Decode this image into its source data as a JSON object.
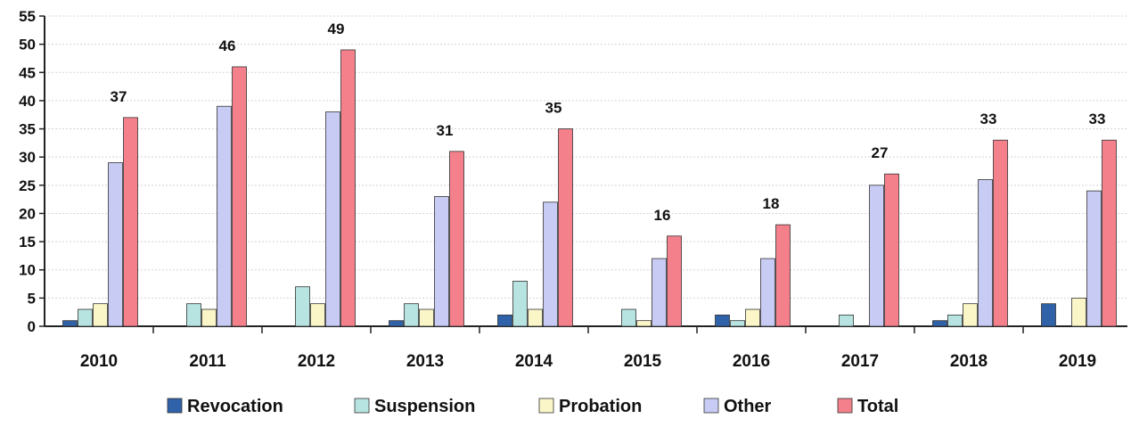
{
  "chart_data": {
    "type": "bar",
    "categories": [
      "2010",
      "2011",
      "2012",
      "2013",
      "2014",
      "2015",
      "2016",
      "2017",
      "2018",
      "2019"
    ],
    "series": [
      {
        "name": "Revocation",
        "color": "#2f62a8",
        "values": [
          1,
          0,
          0,
          1,
          2,
          0,
          2,
          0,
          1,
          4
        ]
      },
      {
        "name": "Suspension",
        "color": "#b7e3e1",
        "values": [
          3,
          4,
          7,
          4,
          8,
          3,
          1,
          2,
          2,
          0
        ]
      },
      {
        "name": "Probation",
        "color": "#fbf6c8",
        "values": [
          4,
          3,
          4,
          3,
          3,
          1,
          3,
          0,
          4,
          5
        ]
      },
      {
        "name": "Other",
        "color": "#c8ccf4",
        "values": [
          29,
          39,
          38,
          23,
          22,
          12,
          12,
          25,
          26,
          24
        ]
      },
      {
        "name": "Total",
        "color": "#f4808c",
        "values": [
          37,
          46,
          49,
          31,
          35,
          16,
          18,
          27,
          33,
          33
        ]
      }
    ],
    "data_labels_series": "Total",
    "ylim": [
      0,
      55
    ],
    "yticks": [
      0,
      5,
      10,
      15,
      20,
      25,
      30,
      35,
      40,
      45,
      50,
      55
    ],
    "grid": true,
    "legend_position": "bottom",
    "title": "",
    "xlabel": "",
    "ylabel": ""
  }
}
